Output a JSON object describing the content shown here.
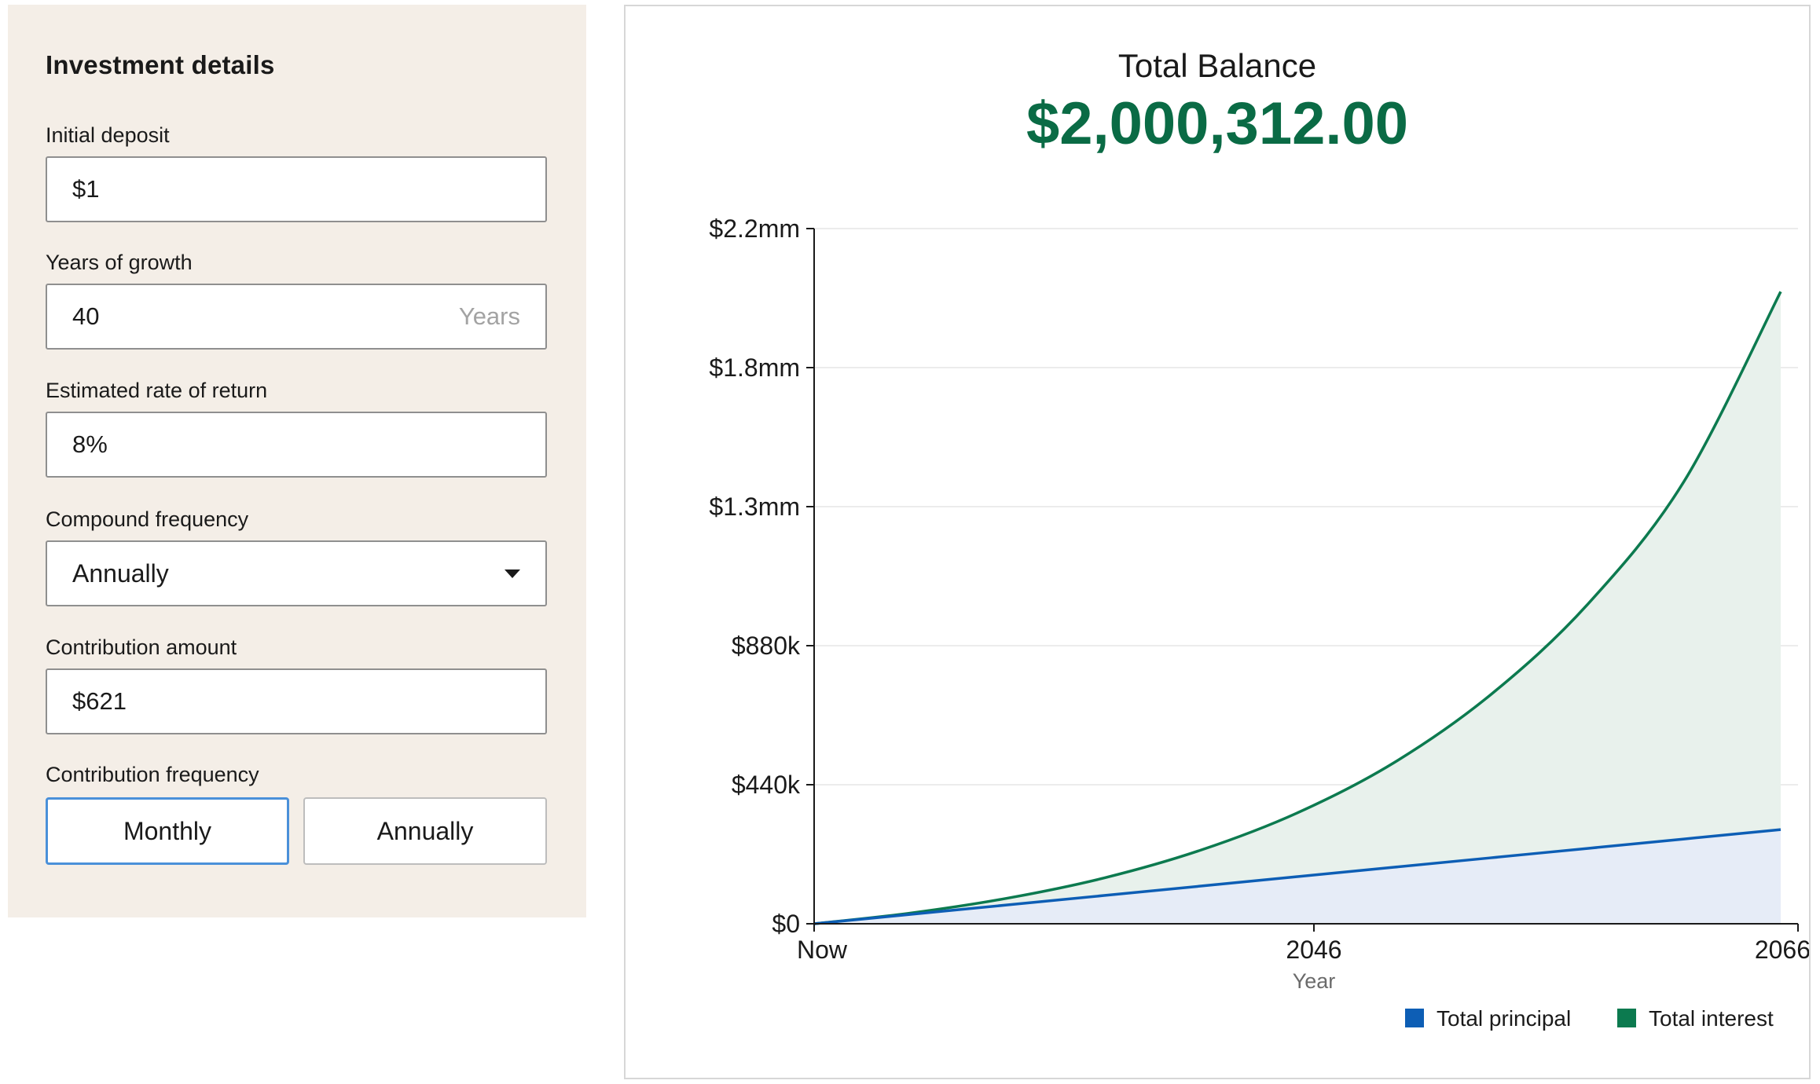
{
  "form": {
    "title": "Investment details",
    "initial_deposit": {
      "label": "Initial deposit",
      "value": "$1"
    },
    "years": {
      "label": "Years of growth",
      "value": "40",
      "suffix": "Years"
    },
    "rate": {
      "label": "Estimated rate of return",
      "value": "8%"
    },
    "compound": {
      "label": "Compound frequency",
      "value": "Annually"
    },
    "contribution": {
      "label": "Contribution amount",
      "value": "$621"
    },
    "contribution_frequency": {
      "label": "Contribution frequency",
      "options": [
        "Monthly",
        "Annually"
      ],
      "selected": "Monthly"
    }
  },
  "summary": {
    "title": "Total Balance",
    "value": "$2,000,312.00"
  },
  "chart_data": {
    "type": "area",
    "x_ticks": [
      "Now",
      "2046",
      "2066"
    ],
    "xlabel": "Year",
    "y_ticks": [
      "$0",
      "$440k",
      "$880k",
      "$1.3mm",
      "$1.8mm",
      "$2.2mm"
    ],
    "ylim": [
      0,
      2200000
    ],
    "xlim": [
      2026,
      2066
    ],
    "legend_position": "bottom-right",
    "colors": {
      "principal": "#0d5eb5",
      "interest": "#0c7a4f",
      "principal_fill": "#e6ecf7",
      "interest_fill": "#e8f1ec"
    },
    "x": [
      2026,
      2030,
      2034,
      2038,
      2042,
      2046,
      2050,
      2054,
      2058,
      2062,
      2066
    ],
    "series": [
      {
        "name": "Total principal",
        "values": [
          1,
          29809,
          59617,
          89425,
          119233,
          149041,
          178849,
          208657,
          238465,
          268273,
          298081
        ]
      },
      {
        "name": "Total interest",
        "values": [
          1,
          34000,
          81000,
          145000,
          233000,
          351000,
          510000,
          725000,
          1010000,
          1400000,
          2000312
        ]
      }
    ]
  }
}
